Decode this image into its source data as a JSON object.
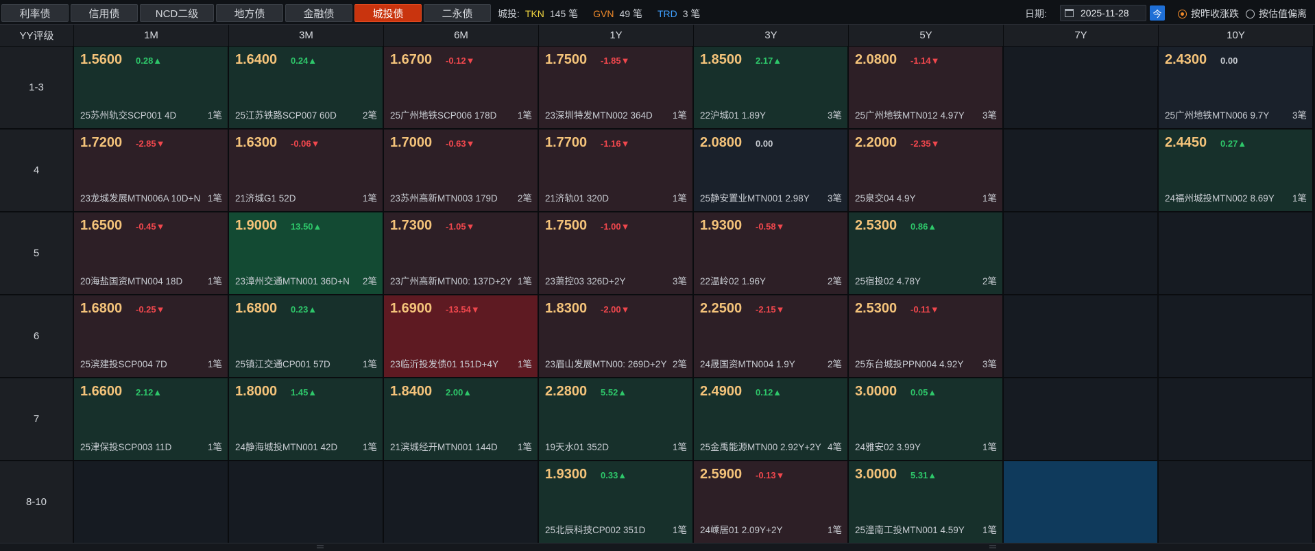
{
  "tabs": [
    {
      "label": "利率债",
      "active": false
    },
    {
      "label": "信用债",
      "active": false
    },
    {
      "label": "NCD二级",
      "active": false
    },
    {
      "label": "地方债",
      "active": false
    },
    {
      "label": "金融债",
      "active": false
    },
    {
      "label": "城投债",
      "active": true
    },
    {
      "label": "二永债",
      "active": false
    }
  ],
  "stats": {
    "label": "城投:",
    "tkn_label": "TKN",
    "tkn_count": "145 笔",
    "gvn_label": "GVN",
    "gvn_count": "49 笔",
    "trd_label": "TRD",
    "trd_count": "3 笔"
  },
  "date": {
    "label": "日期:",
    "value": "2025-11-28",
    "today_button": "今"
  },
  "radios": [
    {
      "label": "按昨收涨跌",
      "checked": true
    },
    {
      "label": "按估值偏离",
      "checked": false
    }
  ],
  "grid": {
    "corner": "YY评级",
    "columns": [
      "1M",
      "3M",
      "6M",
      "1Y",
      "3Y",
      "5Y",
      "7Y",
      "10Y"
    ],
    "rows": [
      {
        "label": "1-3",
        "cells": [
          {
            "yield": "1.5600",
            "change": "0.28▲",
            "dir": "up",
            "tone": "up1",
            "bond": "25苏州轨交SCP001 4D",
            "count": "1笔"
          },
          {
            "yield": "1.6400",
            "change": "0.24▲",
            "dir": "up",
            "tone": "up1",
            "bond": "25江苏铁路SCP007 60D",
            "count": "2笔"
          },
          {
            "yield": "1.6700",
            "change": "-0.12▼",
            "dir": "dn",
            "tone": "dn1",
            "bond": "25广州地铁SCP006 178D",
            "count": "1笔"
          },
          {
            "yield": "1.7500",
            "change": "-1.85▼",
            "dir": "dn",
            "tone": "dn1",
            "bond": "23深圳特发MTN002 364D",
            "count": "1笔"
          },
          {
            "yield": "1.8500",
            "change": "2.17▲",
            "dir": "up",
            "tone": "up1",
            "bond": "22沪城01 1.89Y",
            "count": "3笔"
          },
          {
            "yield": "2.0800",
            "change": "-1.14▼",
            "dir": "dn",
            "tone": "dn1",
            "bond": "25广州地铁MTN012 4.97Y",
            "count": "3笔"
          },
          {
            "empty": true
          },
          {
            "yield": "2.4300",
            "change": "0.00",
            "dir": "zero",
            "tone": "neu",
            "bond": "25广州地铁MTN006 9.7Y",
            "count": "3笔"
          }
        ]
      },
      {
        "label": "4",
        "cells": [
          {
            "yield": "1.7200",
            "change": "-2.85▼",
            "dir": "dn",
            "tone": "dn1",
            "bond": "23龙城发展MTN006A 10D+N",
            "count": "1笔"
          },
          {
            "yield": "1.6300",
            "change": "-0.06▼",
            "dir": "dn",
            "tone": "dn1",
            "bond": "21济城G1 52D",
            "count": "1笔"
          },
          {
            "yield": "1.7000",
            "change": "-0.63▼",
            "dir": "dn",
            "tone": "dn1",
            "bond": "23苏州高新MTN003 179D",
            "count": "2笔"
          },
          {
            "yield": "1.7700",
            "change": "-1.16▼",
            "dir": "dn",
            "tone": "dn1",
            "bond": "21济轨01 320D",
            "count": "1笔"
          },
          {
            "yield": "2.0800",
            "change": "0.00",
            "dir": "zero",
            "tone": "neu",
            "bond": "25静安置业MTN001 2.98Y",
            "count": "3笔"
          },
          {
            "yield": "2.2000",
            "change": "-2.35▼",
            "dir": "dn",
            "tone": "dn1",
            "bond": "25泉交04 4.9Y",
            "count": "1笔"
          },
          {
            "empty": true
          },
          {
            "yield": "2.4450",
            "change": "0.27▲",
            "dir": "up",
            "tone": "up1",
            "bond": "24福州城投MTN002 8.69Y",
            "count": "1笔"
          }
        ]
      },
      {
        "label": "5",
        "cells": [
          {
            "yield": "1.6500",
            "change": "-0.45▼",
            "dir": "dn",
            "tone": "dn1",
            "bond": "20海盐国资MTN004 18D",
            "count": "1笔"
          },
          {
            "yield": "1.9000",
            "change": "13.50▲",
            "dir": "up",
            "tone": "up2",
            "bond": "23漳州交通MTN001 36D+N",
            "count": "2笔"
          },
          {
            "yield": "1.7300",
            "change": "-1.05▼",
            "dir": "dn",
            "tone": "dn1",
            "bond": "23广州高新MTN00: 137D+2Y",
            "count": "1笔"
          },
          {
            "yield": "1.7500",
            "change": "-1.00▼",
            "dir": "dn",
            "tone": "dn1",
            "bond": "23萧控03 326D+2Y",
            "count": "3笔"
          },
          {
            "yield": "1.9300",
            "change": "-0.58▼",
            "dir": "dn",
            "tone": "dn1",
            "bond": "22温岭02 1.96Y",
            "count": "2笔"
          },
          {
            "yield": "2.5300",
            "change": "0.86▲",
            "dir": "up",
            "tone": "up1",
            "bond": "25宿投02 4.78Y",
            "count": "2笔"
          },
          {
            "empty": true
          },
          {
            "empty": true
          }
        ]
      },
      {
        "label": "6",
        "cells": [
          {
            "yield": "1.6800",
            "change": "-0.25▼",
            "dir": "dn",
            "tone": "dn1",
            "bond": "25滨建投SCP004 7D",
            "count": "1笔"
          },
          {
            "yield": "1.6800",
            "change": "0.23▲",
            "dir": "up",
            "tone": "up1",
            "bond": "25镇江交通CP001 57D",
            "count": "1笔"
          },
          {
            "yield": "1.6900",
            "change": "-13.54▼",
            "dir": "dn",
            "tone": "dn2",
            "bond": "23临沂投发债01 151D+4Y",
            "count": "1笔"
          },
          {
            "yield": "1.8300",
            "change": "-2.00▼",
            "dir": "dn",
            "tone": "dn1",
            "bond": "23眉山发展MTN00: 269D+2Y",
            "count": "2笔"
          },
          {
            "yield": "2.2500",
            "change": "-2.15▼",
            "dir": "dn",
            "tone": "dn1",
            "bond": "24晟国资MTN004 1.9Y",
            "count": "2笔"
          },
          {
            "yield": "2.5300",
            "change": "-0.11▼",
            "dir": "dn",
            "tone": "dn1",
            "bond": "25东台城投PPN004 4.92Y",
            "count": "3笔"
          },
          {
            "empty": true
          },
          {
            "empty": true
          }
        ]
      },
      {
        "label": "7",
        "cells": [
          {
            "yield": "1.6600",
            "change": "2.12▲",
            "dir": "up",
            "tone": "up1",
            "bond": "25津保投SCP003 11D",
            "count": "1笔"
          },
          {
            "yield": "1.8000",
            "change": "1.45▲",
            "dir": "up",
            "tone": "up1",
            "bond": "24静海城投MTN001 42D",
            "count": "1笔"
          },
          {
            "yield": "1.8400",
            "change": "2.00▲",
            "dir": "up",
            "tone": "up1",
            "bond": "21滨城经开MTN001 144D",
            "count": "1笔"
          },
          {
            "yield": "2.2800",
            "change": "5.52▲",
            "dir": "up",
            "tone": "up1",
            "bond": "19天水01 352D",
            "count": "1笔"
          },
          {
            "yield": "2.4900",
            "change": "0.12▲",
            "dir": "up",
            "tone": "up1",
            "bond": "25金禹能源MTN00 2.92Y+2Y",
            "count": "4笔"
          },
          {
            "yield": "3.0000",
            "change": "0.05▲",
            "dir": "up",
            "tone": "up1",
            "bond": "24雅安02 3.99Y",
            "count": "1笔"
          },
          {
            "empty": true
          },
          {
            "empty": true
          }
        ]
      },
      {
        "label": "8-10",
        "cells": [
          {
            "empty": true
          },
          {
            "empty": true
          },
          {
            "empty": true
          },
          {
            "yield": "1.9300",
            "change": "0.33▲",
            "dir": "up",
            "tone": "up1",
            "bond": "25北辰科技CP002 351D",
            "count": "1笔"
          },
          {
            "yield": "2.5900",
            "change": "-0.13▼",
            "dir": "dn",
            "tone": "dn1",
            "bond": "24嵊居01 2.09Y+2Y",
            "count": "1笔"
          },
          {
            "yield": "3.0000",
            "change": "5.31▲",
            "dir": "up",
            "tone": "up1",
            "bond": "25潼南工投MTN001 4.59Y",
            "count": "1笔"
          },
          {
            "empty": true,
            "selected": true
          },
          {
            "empty": true
          }
        ]
      }
    ]
  },
  "colors": {
    "accent": "#c9340e",
    "up": "#2ec76a",
    "down": "#f0474d",
    "yield": "#f4c37a",
    "selected": "#0f3a5c"
  }
}
